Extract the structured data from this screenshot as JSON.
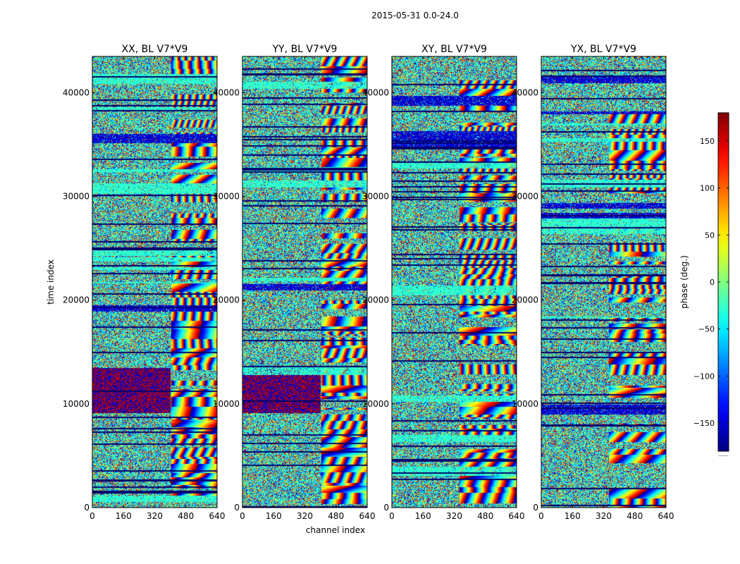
{
  "figure": {
    "suptitle": "2015-05-31 0.0-24.0"
  },
  "chart_data": {
    "type": "heatmap",
    "xlabel": "channel index",
    "ylabel": "time index",
    "xlim": [
      0,
      640
    ],
    "ylim": [
      0,
      43500
    ],
    "xticks": [
      0,
      160,
      320,
      480,
      640
    ],
    "yticks": [
      0,
      10000,
      20000,
      30000,
      40000
    ],
    "panels": [
      {
        "title": "XX, BL V7*V9",
        "xticks": [
          "0",
          "160",
          "320",
          "480",
          "640"
        ],
        "yticks": [
          "0",
          "10000",
          "20000",
          "30000",
          "40000"
        ]
      },
      {
        "title": "YY, BL V7*V9",
        "xticks": [
          "0",
          "160",
          "320",
          "480",
          "640"
        ],
        "yticks": [
          "0",
          "10000",
          "20000",
          "30000",
          "40000"
        ]
      },
      {
        "title": "XY, BL V7*V9",
        "xticks": [
          "0",
          "160",
          "320",
          "480",
          "640"
        ],
        "yticks": [
          "0",
          "10000",
          "20000",
          "30000",
          "40000"
        ]
      },
      {
        "title": "YX, BL V7*V9",
        "xticks": [
          "0",
          "160",
          "320",
          "480",
          "640"
        ],
        "yticks": [
          "0",
          "10000",
          "20000",
          "30000",
          "40000"
        ]
      }
    ],
    "colorbar": {
      "label": "phase (deg.)",
      "range": [
        -180,
        180
      ],
      "ticks": [
        -150,
        -100,
        -50,
        0,
        50,
        100,
        150
      ],
      "tick_labels": [
        "−150",
        "−100",
        "−50",
        "0",
        "50",
        "100",
        "150"
      ],
      "colormap": "jet",
      "footer": "......"
    }
  }
}
